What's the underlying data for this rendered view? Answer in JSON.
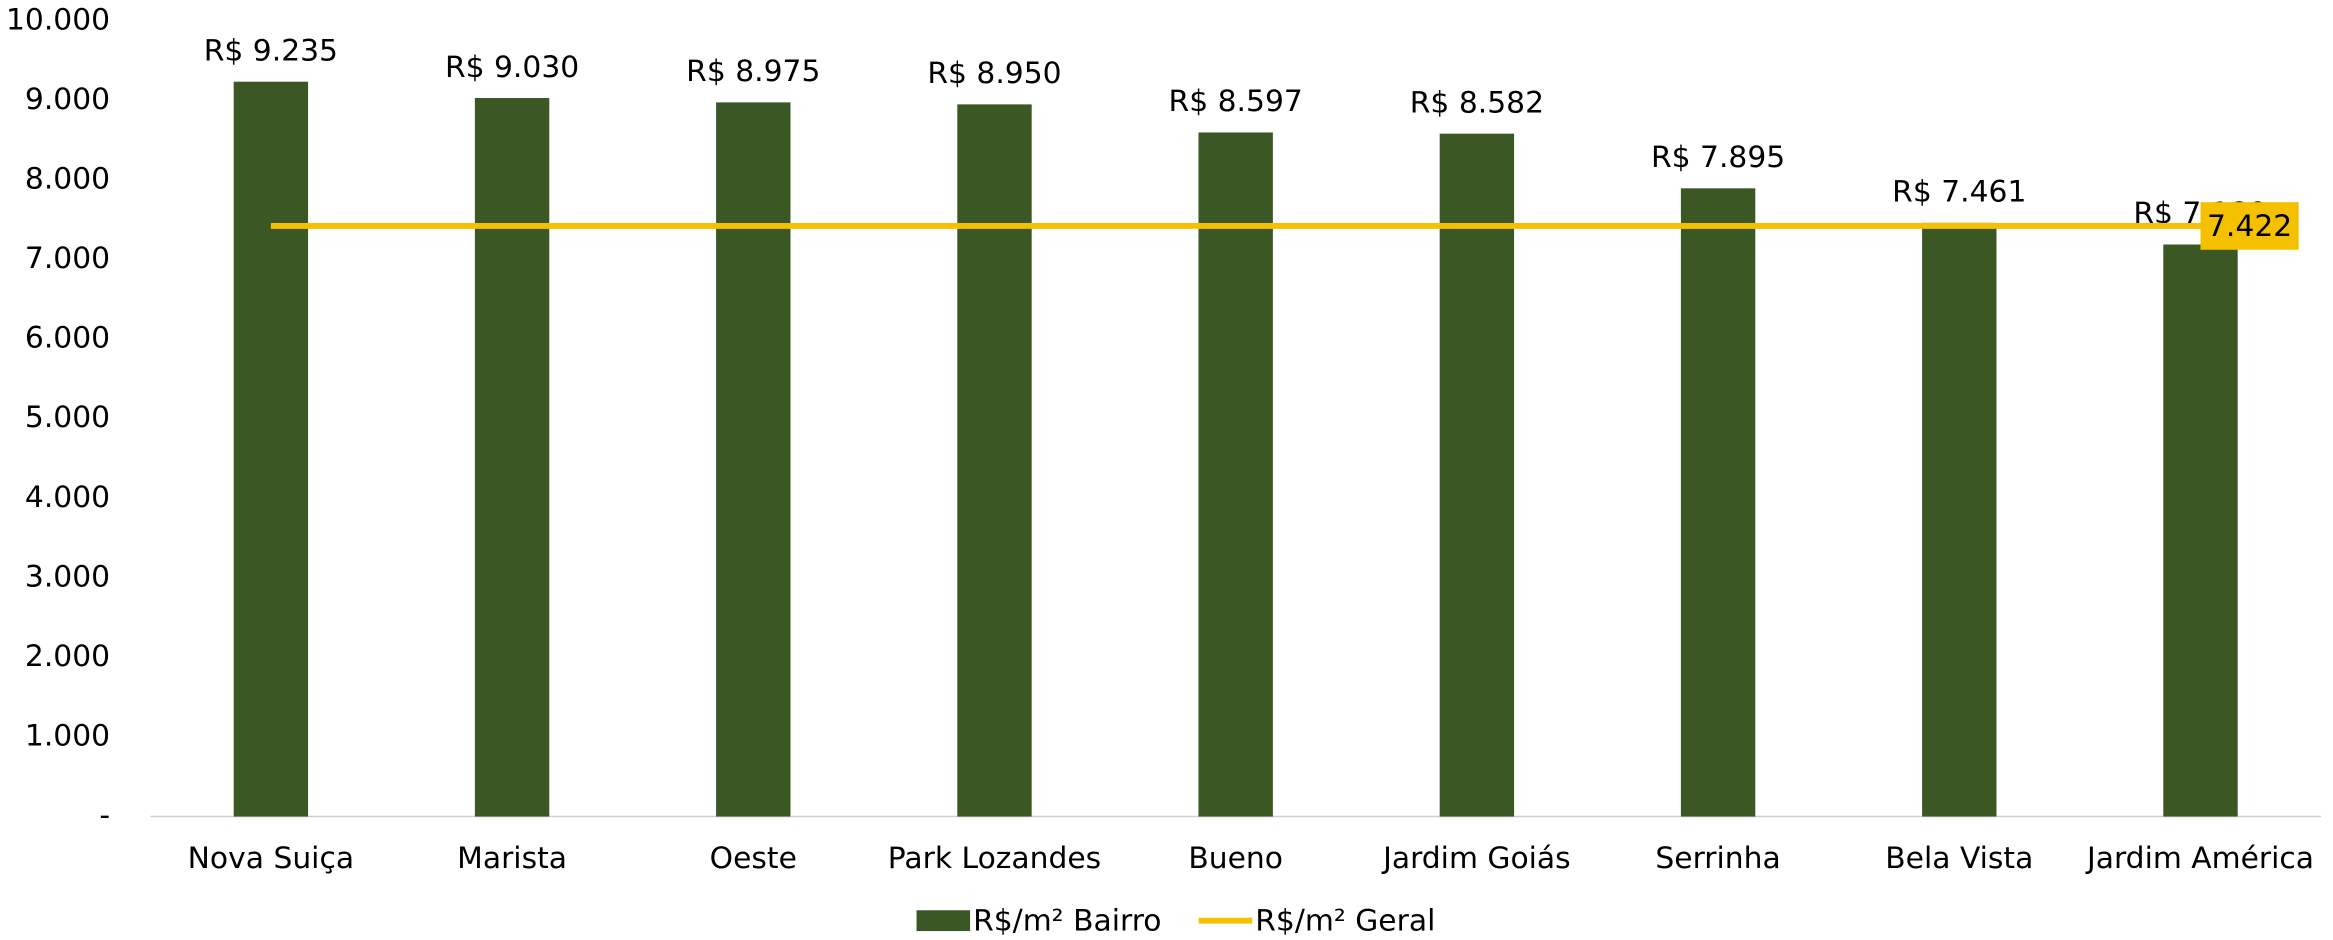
{
  "chart_data": {
    "type": "bar",
    "categories": [
      "Nova Suiça",
      "Marista",
      "Oeste",
      "Park Lozandes",
      "Bueno",
      "Jardim Goiás",
      "Serrinha",
      "Bela Vista",
      "Jardim América"
    ],
    "series": [
      {
        "name": "R$/m² Bairro",
        "color": "#3b5724",
        "type": "bar",
        "values": [
          9235,
          9030,
          8975,
          8950,
          8597,
          8582,
          7895,
          7461,
          7189
        ],
        "value_labels": [
          "R$ 9.235",
          "R$ 9.030",
          "R$ 8.975",
          "R$ 8.950",
          "R$ 8.597",
          "R$ 8.582",
          "R$ 7.895",
          "R$ 7.461",
          "R$ 7.189"
        ]
      },
      {
        "name": "R$/m² Geral",
        "color": "#f5c000",
        "type": "line",
        "values": [
          7422,
          7422,
          7422,
          7422,
          7422,
          7422,
          7422,
          7422,
          7422
        ],
        "value_labels": [
          null,
          null,
          null,
          null,
          null,
          null,
          null,
          null,
          "7.422"
        ]
      }
    ],
    "ylim": [
      0,
      10000
    ],
    "yticks": [
      {
        "value": 0,
        "label": "-"
      },
      {
        "value": 1000,
        "label": "1.000"
      },
      {
        "value": 2000,
        "label": "2.000"
      },
      {
        "value": 3000,
        "label": "3.000"
      },
      {
        "value": 4000,
        "label": "4.000"
      },
      {
        "value": 5000,
        "label": "5.000"
      },
      {
        "value": 6000,
        "label": "6.000"
      },
      {
        "value": 7000,
        "label": "7.000"
      },
      {
        "value": 8000,
        "label": "8.000"
      },
      {
        "value": 9000,
        "label": "9.000"
      },
      {
        "value": 10000,
        "label": "10.000"
      }
    ],
    "legend": "bottom"
  }
}
